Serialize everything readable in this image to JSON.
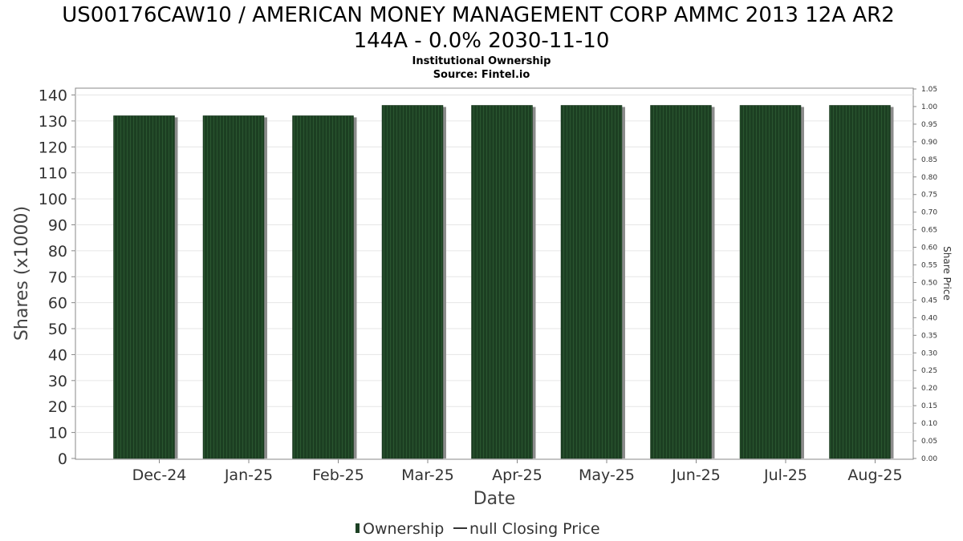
{
  "chart_data": {
    "type": "bar",
    "title_line1": "US00176CAW10 / AMERICAN MONEY MANAGEMENT CORP AMMC 2013 12A AR2",
    "title_line2": "144A - 0.0% 2030-11-10",
    "subtitle_line1": "Institutional Ownership",
    "subtitle_line2": "Source: Fintel.io",
    "xlabel": "Date",
    "ylabel": "Shares (x1000)",
    "ylabel_right": "Share Price",
    "categories": [
      "Dec-24",
      "Jan-25",
      "Feb-25",
      "Mar-25",
      "Apr-25",
      "May-25",
      "Jun-25",
      "Jul-25",
      "Aug-25"
    ],
    "series": [
      {
        "name": "Ownership",
        "values": [
          132,
          132,
          132,
          136,
          136,
          136,
          136,
          136,
          136
        ]
      }
    ],
    "ylim": [
      0,
      140
    ],
    "yticks": [
      0,
      10,
      20,
      30,
      40,
      50,
      60,
      70,
      80,
      90,
      100,
      110,
      120,
      130,
      140
    ],
    "ylim_right": [
      0,
      1.05
    ],
    "yticks_right": [
      "0.00",
      "0.05",
      "0.10",
      "0.15",
      "0.20",
      "0.25",
      "0.30",
      "0.35",
      "0.40",
      "0.45",
      "0.50",
      "0.55",
      "0.60",
      "0.65",
      "0.70",
      "0.75",
      "0.80",
      "0.85",
      "0.90",
      "0.95",
      "1.00",
      "1.05"
    ],
    "grid": true,
    "legend_position": "bottom",
    "legend": [
      {
        "label": "Ownership",
        "kind": "bar"
      },
      {
        "label": "null Closing Price",
        "kind": "line"
      }
    ],
    "colors": {
      "bar": "#1d4124",
      "bar_stripe": "#2c5a33",
      "bar_shadow": "#8c8c8c",
      "grid": "#e6e6e6",
      "axis": "#888888"
    }
  }
}
